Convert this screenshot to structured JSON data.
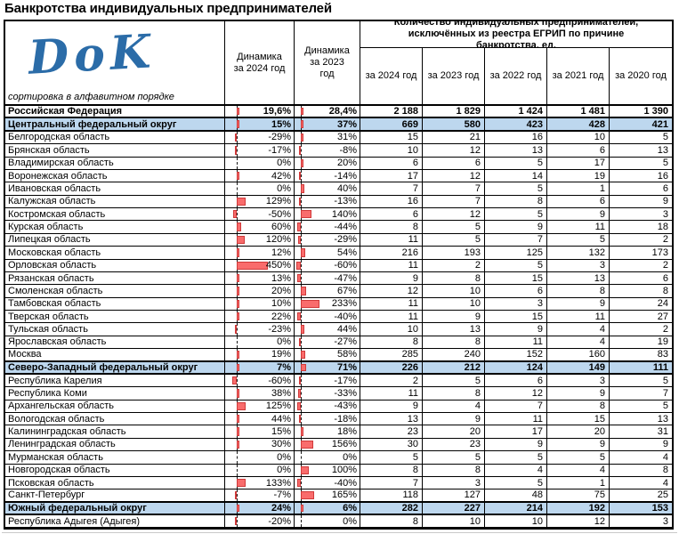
{
  "page": {
    "title": "Банкротства индивидуальных предпринимателей"
  },
  "logo": {
    "text": "DoK"
  },
  "header": {
    "sort_note": "сортировка в алфавитном порядке",
    "dyn_2024": "Динамика за 2024 год",
    "dyn_2023": "Динамика за 2023 год",
    "qty_group": "Количество индивидуальных предпринимателей, исключённых из реестра ЕГРИП по причине банкротства, ед.",
    "years": [
      "за 2024 год",
      "за 2023 год",
      "за 2022 год",
      "за 2021 год",
      "за 2020 год"
    ]
  },
  "colors": {
    "band": "#BDD7EE",
    "bar_fill": "#F96C6C",
    "bar_border": "#D03A3A",
    "logo": "#2B6CA8"
  },
  "chart_data": {
    "type": "table",
    "title": "Банкротства индивидуальных предпринимателей",
    "note": "сортировка в алфавитном порядке",
    "group_header": "Количество индивидуальных предпринимателей, исключённых из реестра ЕГРИП по причине банкротства, ед.",
    "columns": [
      "Динамика за 2024 год",
      "Динамика за 2023 год",
      "за 2024 год",
      "за 2023 год",
      "за 2022 год",
      "за 2021 год",
      "за 2020 год"
    ],
    "rows": [
      {
        "name": "Российская Федерация",
        "style": "total",
        "dyn_2024": "19,6%",
        "dyn_2023": "28,4%",
        "counts": [
          "2 188",
          "1 829",
          "1 424",
          "1 481",
          "1 390"
        ]
      },
      {
        "name": "Центральный федеральный округ",
        "style": "district",
        "dyn_2024": "15%",
        "dyn_2023": "37%",
        "counts": [
          "669",
          "580",
          "423",
          "428",
          "421"
        ]
      },
      {
        "name": "Белгородская область",
        "style": "region",
        "dyn_2024": "-29%",
        "dyn_2023": "31%",
        "counts": [
          "15",
          "21",
          "16",
          "10",
          "5"
        ]
      },
      {
        "name": "Брянская область",
        "style": "region",
        "dyn_2024": "-17%",
        "dyn_2023": "-8%",
        "counts": [
          "10",
          "12",
          "13",
          "6",
          "13"
        ]
      },
      {
        "name": "Владимирская область",
        "style": "region",
        "dyn_2024": "0%",
        "dyn_2023": "20%",
        "counts": [
          "6",
          "6",
          "5",
          "17",
          "5"
        ]
      },
      {
        "name": "Воронежская область",
        "style": "region",
        "dyn_2024": "42%",
        "dyn_2023": "-14%",
        "counts": [
          "17",
          "12",
          "14",
          "19",
          "16"
        ]
      },
      {
        "name": "Ивановская область",
        "style": "region",
        "dyn_2024": "0%",
        "dyn_2023": "40%",
        "counts": [
          "7",
          "7",
          "5",
          "1",
          "6"
        ]
      },
      {
        "name": "Калужская область",
        "style": "region",
        "dyn_2024": "129%",
        "dyn_2023": "-13%",
        "counts": [
          "16",
          "7",
          "8",
          "6",
          "9"
        ]
      },
      {
        "name": "Костромская область",
        "style": "region",
        "dyn_2024": "-50%",
        "dyn_2023": "140%",
        "counts": [
          "6",
          "12",
          "5",
          "9",
          "3"
        ]
      },
      {
        "name": "Курская область",
        "style": "region",
        "dyn_2024": "60%",
        "dyn_2023": "-44%",
        "counts": [
          "8",
          "5",
          "9",
          "11",
          "18"
        ]
      },
      {
        "name": "Липецкая область",
        "style": "region",
        "dyn_2024": "120%",
        "dyn_2023": "-29%",
        "counts": [
          "11",
          "5",
          "7",
          "5",
          "2"
        ]
      },
      {
        "name": "Московская область",
        "style": "region",
        "dyn_2024": "12%",
        "dyn_2023": "54%",
        "counts": [
          "216",
          "193",
          "125",
          "132",
          "173"
        ]
      },
      {
        "name": "Орловская область",
        "style": "region",
        "dyn_2024": "450%",
        "dyn_2023": "-60%",
        "counts": [
          "11",
          "2",
          "5",
          "3",
          "2"
        ]
      },
      {
        "name": "Рязанская область",
        "style": "region",
        "dyn_2024": "13%",
        "dyn_2023": "-47%",
        "counts": [
          "9",
          "8",
          "15",
          "13",
          "6"
        ]
      },
      {
        "name": "Смоленская область",
        "style": "region",
        "dyn_2024": "20%",
        "dyn_2023": "67%",
        "counts": [
          "12",
          "10",
          "6",
          "8",
          "8"
        ]
      },
      {
        "name": "Тамбовская область",
        "style": "region",
        "dyn_2024": "10%",
        "dyn_2023": "233%",
        "counts": [
          "11",
          "10",
          "3",
          "9",
          "24"
        ]
      },
      {
        "name": "Тверская область",
        "style": "region",
        "dyn_2024": "22%",
        "dyn_2023": "-40%",
        "counts": [
          "11",
          "9",
          "15",
          "11",
          "27"
        ]
      },
      {
        "name": "Тульская область",
        "style": "region",
        "dyn_2024": "-23%",
        "dyn_2023": "44%",
        "counts": [
          "10",
          "13",
          "9",
          "4",
          "2"
        ]
      },
      {
        "name": "Ярославская область",
        "style": "region",
        "dyn_2024": "0%",
        "dyn_2023": "-27%",
        "counts": [
          "8",
          "8",
          "11",
          "4",
          "19"
        ]
      },
      {
        "name": "Москва",
        "style": "region",
        "dyn_2024": "19%",
        "dyn_2023": "58%",
        "counts": [
          "285",
          "240",
          "152",
          "160",
          "83"
        ]
      },
      {
        "name": "Северо-Западный федеральный округ",
        "style": "district",
        "dyn_2024": "7%",
        "dyn_2023": "71%",
        "counts": [
          "226",
          "212",
          "124",
          "149",
          "111"
        ]
      },
      {
        "name": "Республика Карелия",
        "style": "region",
        "dyn_2024": "-60%",
        "dyn_2023": "-17%",
        "counts": [
          "2",
          "5",
          "6",
          "3",
          "5"
        ]
      },
      {
        "name": "Республика Коми",
        "style": "region",
        "dyn_2024": "38%",
        "dyn_2023": "-33%",
        "counts": [
          "11",
          "8",
          "12",
          "9",
          "7"
        ]
      },
      {
        "name": "Архангельская область",
        "style": "region",
        "dyn_2024": "125%",
        "dyn_2023": "-43%",
        "counts": [
          "9",
          "4",
          "7",
          "8",
          "5"
        ]
      },
      {
        "name": "Вологодская область",
        "style": "region",
        "dyn_2024": "44%",
        "dyn_2023": "-18%",
        "counts": [
          "13",
          "9",
          "11",
          "15",
          "13"
        ]
      },
      {
        "name": "Калининградская область",
        "style": "region",
        "dyn_2024": "15%",
        "dyn_2023": "18%",
        "counts": [
          "23",
          "20",
          "17",
          "20",
          "31"
        ]
      },
      {
        "name": "Ленинградская область",
        "style": "region",
        "dyn_2024": "30%",
        "dyn_2023": "156%",
        "counts": [
          "30",
          "23",
          "9",
          "9",
          "9"
        ]
      },
      {
        "name": "Мурманская область",
        "style": "region",
        "dyn_2024": "0%",
        "dyn_2023": "0%",
        "counts": [
          "5",
          "5",
          "5",
          "5",
          "4"
        ]
      },
      {
        "name": "Новгородская область",
        "style": "region",
        "dyn_2024": "0%",
        "dyn_2023": "100%",
        "counts": [
          "8",
          "8",
          "4",
          "4",
          "8"
        ]
      },
      {
        "name": "Псковская область",
        "style": "region",
        "dyn_2024": "133%",
        "dyn_2023": "-40%",
        "counts": [
          "7",
          "3",
          "5",
          "1",
          "4"
        ]
      },
      {
        "name": "Санкт-Петербург",
        "style": "region",
        "dyn_2024": "-7%",
        "dyn_2023": "165%",
        "counts": [
          "118",
          "127",
          "48",
          "75",
          "25"
        ]
      },
      {
        "name": "Южный федеральный округ",
        "style": "district",
        "dyn_2024": "24%",
        "dyn_2023": "6%",
        "counts": [
          "282",
          "227",
          "214",
          "192",
          "153"
        ]
      },
      {
        "name": "Республика Адыгея (Адыгея)",
        "style": "region",
        "dyn_2024": "-20%",
        "dyn_2023": "0%",
        "counts": [
          "8",
          "10",
          "10",
          "12",
          "3"
        ]
      }
    ]
  }
}
